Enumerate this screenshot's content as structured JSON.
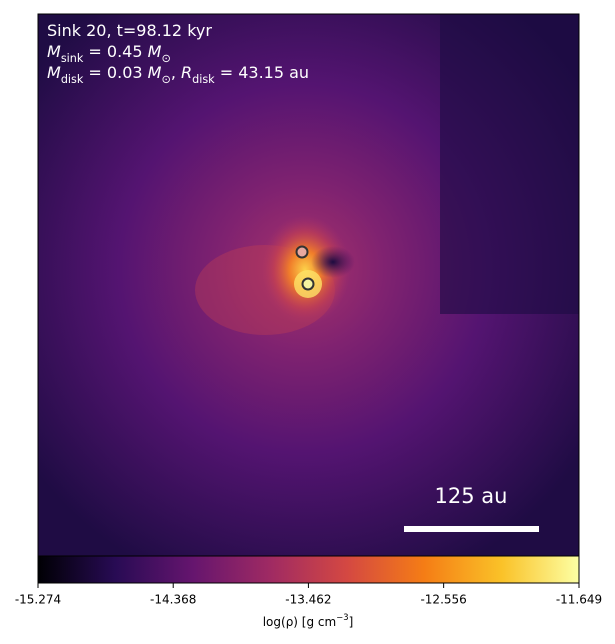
{
  "chart_data": {
    "type": "density-map",
    "annotations": [
      [
        {
          "text": "Sink 20, t=98.12 kyr"
        }
      ],
      [
        {
          "text": "M",
          "style": "italic"
        },
        {
          "text": "sink",
          "style": "sub"
        },
        {
          "text": " = 0.45 "
        },
        {
          "text": "M",
          "style": "italic"
        },
        {
          "text": "⊙",
          "style": "sub"
        }
      ],
      [
        {
          "text": "M",
          "style": "italic"
        },
        {
          "text": "disk",
          "style": "sub"
        },
        {
          "text": " = 0.03 "
        },
        {
          "text": "M",
          "style": "italic"
        },
        {
          "text": "⊙",
          "style": "sub"
        },
        {
          "text": ", "
        },
        {
          "text": "R",
          "style": "italic"
        },
        {
          "text": "disk",
          "style": "sub"
        },
        {
          "text": " = 43.15 au"
        }
      ]
    ],
    "scale_bar_label": "125 au",
    "colorbar": {
      "label": [
        {
          "text": "log(ρ) [g cm"
        },
        {
          "text": "−3",
          "style": "sup"
        },
        {
          "text": "]"
        }
      ],
      "lim": [
        -15.274,
        -11.649
      ],
      "ticks": [
        -15.274,
        -14.368,
        -13.462,
        -12.556,
        -11.649
      ],
      "colormap": [
        "#000004",
        "#280b54",
        "#65156e",
        "#9f2a63",
        "#d44842",
        "#f57d15",
        "#fac228",
        "#fcffa4"
      ]
    }
  }
}
